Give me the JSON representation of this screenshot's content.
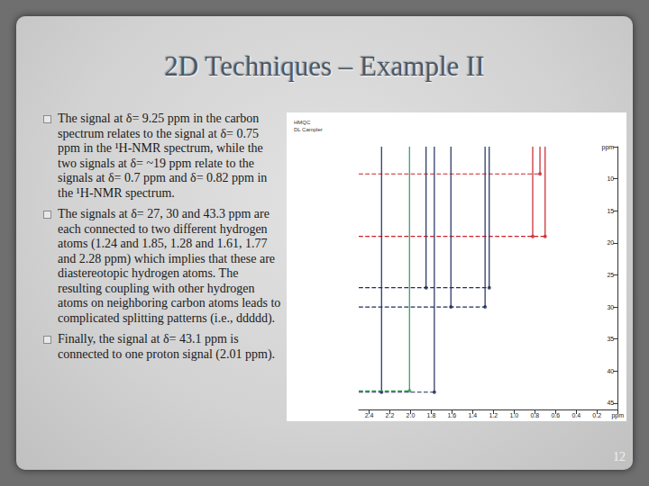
{
  "title": "2D Techniques – Example II",
  "bullets": [
    "The signal at δ= 9.25 ppm in the carbon spectrum relates to the signal at δ= 0.75 ppm in the ¹H-NMR spectrum, while the two signals at δ= ~19 ppm relate to the signals at δ= 0.7 ppm and δ= 0.82 ppm in the ¹H-NMR spectrum.",
    "The signals at δ= 27, 30 and 43.3 ppm are each connected to two different hydrogen atoms (1.24 and 1.85, 1.28 and 1.61, 1.77 and 2.28 ppm) which implies that these are diastereotopic hydrogen atoms. The resulting coupling with other hydrogen atoms on neighboring carbon atoms leads to complicated splitting patterns (i.e., ddddd).",
    "Finally, the signal at δ= 43.1 ppm is connected to one proton signal (2.01 ppm)."
  ],
  "page_number": "12",
  "chart_data": {
    "type": "scatter",
    "labels": [
      "HMQC",
      "DL Campler"
    ],
    "xlim": [
      2.5,
      0
    ],
    "ylim": [
      5,
      46
    ],
    "xticks": [
      {
        "value": 0,
        "label": "ppm"
      },
      0.2,
      0.4,
      0.6,
      0.8,
      {
        "value": 1,
        "label": "1.0"
      },
      1.2,
      1.4,
      1.6,
      1.8,
      {
        "value": 2,
        "label": "2.0"
      },
      2.2,
      2.4
    ],
    "yticks": [
      {
        "value": 5,
        "label": "ppm"
      },
      10,
      15,
      20,
      25,
      30,
      35,
      40,
      45
    ],
    "grid": false,
    "correlations": [
      {
        "carbon": 9.25,
        "protons": [
          0.75
        ],
        "color": "#c8202a"
      },
      {
        "carbon": 19,
        "protons": [
          0.7,
          0.82
        ],
        "color": "#c8202a"
      },
      {
        "carbon": 27,
        "protons": [
          1.24,
          1.85
        ],
        "color": "#1f2d5a"
      },
      {
        "carbon": 30,
        "protons": [
          1.28,
          1.61
        ],
        "color": "#1f2d5a"
      },
      {
        "carbon": 43.3,
        "protons": [
          1.77,
          2.28
        ],
        "color": "#1f2d5a"
      },
      {
        "carbon": 43.1,
        "protons": [
          2.01
        ],
        "color": "#2a9a5a"
      }
    ]
  }
}
